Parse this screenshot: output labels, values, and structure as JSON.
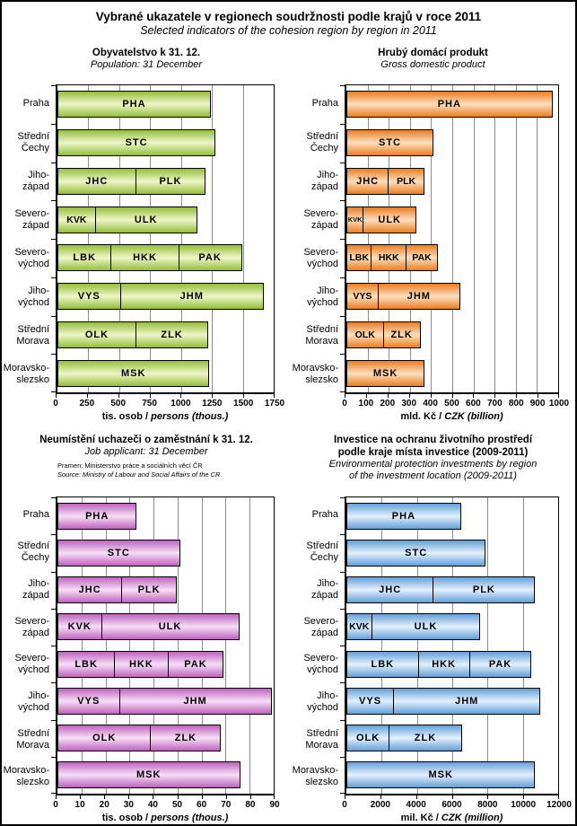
{
  "page": {
    "title_cs": "Vybrané ukazatele v regionech soudržnosti podle krajů v roce 2011",
    "title_en": "Selected indicators of the cohesion region by region in 2011"
  },
  "categories": [
    [
      "Praha"
    ],
    [
      "Střední",
      "Čechy"
    ],
    [
      "Jiho-",
      "západ"
    ],
    [
      "Severo-",
      "západ"
    ],
    [
      "Severo-",
      "východ"
    ],
    [
      "Jiho-",
      "východ"
    ],
    [
      "Střední",
      "Morava"
    ],
    [
      "Moravsko-",
      "slezsko"
    ]
  ],
  "chart_data": [
    {
      "id": "population",
      "type": "bar",
      "title": [
        "Obyvatelstvo k 31. 12."
      ],
      "subtitle": [
        "Population: 31 December"
      ],
      "xlabel": "tis. osob /",
      "xlabel_italic": "persons (thous.)",
      "xlim": [
        0,
        1750
      ],
      "xticks": [
        0,
        250,
        500,
        750,
        1000,
        1250,
        1500,
        1750
      ],
      "grid": true,
      "colors": {
        "edge": "#94BE3A",
        "center": "#EEF6C8"
      },
      "rows": [
        {
          "category": "Praha",
          "segments": [
            {
              "code": "PHA",
              "value": 1241
            }
          ]
        },
        {
          "category": "Střední Čechy",
          "segments": [
            {
              "code": "STC",
              "value": 1279
            }
          ]
        },
        {
          "category": "Jihozápad",
          "segments": [
            {
              "code": "JHC",
              "value": 636
            },
            {
              "code": "PLK",
              "value": 572
            }
          ]
        },
        {
          "category": "Severozápad",
          "segments": [
            {
              "code": "KVK",
              "value": 310
            },
            {
              "code": "ULK",
              "value": 828
            }
          ]
        },
        {
          "category": "Severovýchod",
          "segments": [
            {
              "code": "LBK",
              "value": 439
            },
            {
              "code": "HKK",
              "value": 553
            },
            {
              "code": "PAK",
              "value": 516
            }
          ]
        },
        {
          "category": "Jihovýchod",
          "segments": [
            {
              "code": "VYS",
              "value": 512
            },
            {
              "code": "JHM",
              "value": 1166
            }
          ]
        },
        {
          "category": "Střední Morava",
          "segments": [
            {
              "code": "OLK",
              "value": 639
            },
            {
              "code": "ZLK",
              "value": 589
            }
          ]
        },
        {
          "category": "Moravskoslezsko",
          "segments": [
            {
              "code": "MSK",
              "value": 1230
            }
          ]
        }
      ]
    },
    {
      "id": "gdp",
      "type": "bar",
      "title": [
        "Hrubý domácí produkt"
      ],
      "subtitle": [
        "Gross domestic product"
      ],
      "xlabel": "mld. Kč /",
      "xlabel_italic": "CZK (billion)",
      "xlim": [
        0,
        1000
      ],
      "xticks": [
        0,
        100,
        200,
        300,
        400,
        500,
        600,
        700,
        800,
        900,
        1000
      ],
      "grid": true,
      "colors": {
        "edge": "#EC7D21",
        "center": "#FCDFBE"
      },
      "rows": [
        {
          "category": "Praha",
          "segments": [
            {
              "code": "PHA",
              "value": 973
            }
          ]
        },
        {
          "category": "Střední Čechy",
          "segments": [
            {
              "code": "STC",
              "value": 411
            }
          ]
        },
        {
          "category": "Jihozápad",
          "segments": [
            {
              "code": "JHC",
              "value": 200
            },
            {
              "code": "PLK",
              "value": 173
            }
          ]
        },
        {
          "category": "Severozápad",
          "segments": [
            {
              "code": "KVK",
              "value": 82
            },
            {
              "code": "ULK",
              "value": 253
            }
          ]
        },
        {
          "category": "Severovýchod",
          "segments": [
            {
              "code": "LBK",
              "value": 120
            },
            {
              "code": "HKK",
              "value": 169
            },
            {
              "code": "PAK",
              "value": 151
            }
          ]
        },
        {
          "category": "Jihovýchod",
          "segments": [
            {
              "code": "VYS",
              "value": 152
            },
            {
              "code": "JHM",
              "value": 390
            }
          ]
        },
        {
          "category": "Střední Morava",
          "segments": [
            {
              "code": "OLK",
              "value": 176
            },
            {
              "code": "ZLK",
              "value": 179
            }
          ]
        },
        {
          "category": "Moravskoslezsko",
          "segments": [
            {
              "code": "MSK",
              "value": 369
            }
          ]
        }
      ]
    },
    {
      "id": "job-applicants",
      "type": "bar",
      "title": [
        "Neumístění uchazeči o zaměstnání k 31. 12."
      ],
      "subtitle": [
        "Job applicant: 31 December"
      ],
      "source_cs": "Pramen: Ministerstvo práce a sociálních věcí ČR",
      "source_en": "Source: Ministry of Labour and Social Affairs of the CR",
      "xlabel": "tis. osob /",
      "xlabel_italic": "persons (thous.)",
      "xlim": [
        0,
        90
      ],
      "xticks": [
        0,
        10,
        20,
        30,
        40,
        50,
        60,
        70,
        80,
        90
      ],
      "grid": true,
      "colors": {
        "edge": "#C062C0",
        "center": "#F5DFF5"
      },
      "rows": [
        {
          "category": "Praha",
          "segments": [
            {
              "code": "PHA",
              "value": 33
            }
          ]
        },
        {
          "category": "Střední Čechy",
          "segments": [
            {
              "code": "STC",
              "value": 51
            }
          ]
        },
        {
          "category": "Jihozápad",
          "segments": [
            {
              "code": "JHC",
              "value": 27
            },
            {
              "code": "PLK",
              "value": 23
            }
          ]
        },
        {
          "category": "Severozápad",
          "segments": [
            {
              "code": "KVK",
              "value": 18.5
            },
            {
              "code": "ULK",
              "value": 57.5
            }
          ]
        },
        {
          "category": "Severovýchod",
          "segments": [
            {
              "code": "LBK",
              "value": 24
            },
            {
              "code": "HKK",
              "value": 22.5
            },
            {
              "code": "PAK",
              "value": 23.5
            }
          ]
        },
        {
          "category": "Jihovýchod",
          "segments": [
            {
              "code": "VYS",
              "value": 26
            },
            {
              "code": "JHM",
              "value": 63.5
            }
          ]
        },
        {
          "category": "Střední Morava",
          "segments": [
            {
              "code": "OLK",
              "value": 39
            },
            {
              "code": "ZLK",
              "value": 29.5
            }
          ]
        },
        {
          "category": "Moravskoslezsko",
          "segments": [
            {
              "code": "MSK",
              "value": 76
            }
          ]
        }
      ]
    },
    {
      "id": "environmental-investments",
      "type": "bar",
      "title": [
        "Investice na ochranu životního prostředí",
        "podle kraje místa investice (2009-2011)"
      ],
      "subtitle": [
        "Environmental protection investments by region",
        "of the investment location (2009-2011)"
      ],
      "xlabel": "mil. Kč /",
      "xlabel_italic": "CZK (million)",
      "xlim": [
        0,
        12000
      ],
      "xticks": [
        0,
        2000,
        4000,
        6000,
        8000,
        10000,
        12000
      ],
      "grid": true,
      "colors": {
        "edge": "#639FD9",
        "center": "#E4F1FC"
      },
      "rows": [
        {
          "category": "Praha",
          "segments": [
            {
              "code": "PHA",
              "value": 6500
            }
          ]
        },
        {
          "category": "Střední Čechy",
          "segments": [
            {
              "code": "STC",
              "value": 7900
            }
          ]
        },
        {
          "category": "Jihozápad",
          "segments": [
            {
              "code": "JHC",
              "value": 4950
            },
            {
              "code": "PLK",
              "value": 5800
            }
          ]
        },
        {
          "category": "Severozápad",
          "segments": [
            {
              "code": "KVK",
              "value": 1450
            },
            {
              "code": "ULK",
              "value": 6200
            }
          ]
        },
        {
          "category": "Severovýchod",
          "segments": [
            {
              "code": "LBK",
              "value": 4100
            },
            {
              "code": "HKK",
              "value": 2950
            },
            {
              "code": "PAK",
              "value": 3550
            }
          ]
        },
        {
          "category": "Jihovýchod",
          "segments": [
            {
              "code": "VYS",
              "value": 2700
            },
            {
              "code": "JHM",
              "value": 8350
            }
          ]
        },
        {
          "category": "Střední Morava",
          "segments": [
            {
              "code": "OLK",
              "value": 2450
            },
            {
              "code": "ZLK",
              "value": 4150
            }
          ]
        },
        {
          "category": "Moravskoslezsko",
          "segments": [
            {
              "code": "MSK",
              "value": 10700
            }
          ]
        }
      ]
    }
  ]
}
